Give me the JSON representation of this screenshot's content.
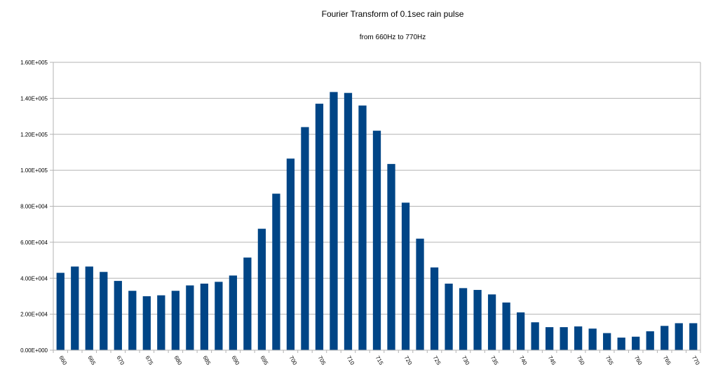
{
  "chart_data": {
    "type": "bar",
    "title": "Fourier Transform of 0.1sec rain pulse",
    "subtitle": "from 660Hz to 770Hz",
    "xlabel": "",
    "ylabel": "",
    "ylim": [
      0,
      160000
    ],
    "yticks": [
      0,
      20000,
      40000,
      60000,
      80000,
      100000,
      120000,
      140000,
      160000
    ],
    "ytick_labels": [
      "0.00E+000",
      "2.00E+004",
      "4.00E+004",
      "6.00E+004",
      "8.00E+004",
      "1.00E+005",
      "1.20E+005",
      "1.40E+005",
      "1.60E+005"
    ],
    "grid": true,
    "legend": "none",
    "bar_color": "#004586",
    "categories": [
      660,
      662.5,
      665,
      667.5,
      670,
      672.5,
      675,
      677.5,
      680,
      682.5,
      685,
      687.5,
      690,
      692.5,
      695,
      697.5,
      700,
      702.5,
      705,
      707.5,
      710,
      712.5,
      715,
      717.5,
      720,
      722.5,
      725,
      727.5,
      730,
      732.5,
      735,
      737.5,
      740,
      742.5,
      745,
      747.5,
      750,
      752.5,
      755,
      757.5,
      760,
      762.5,
      765,
      767.5,
      770
    ],
    "xtick_labels": [
      "660",
      "665",
      "670",
      "675",
      "680",
      "685",
      "690",
      "695",
      "700",
      "705",
      "710",
      "715",
      "720",
      "725",
      "730",
      "735",
      "740",
      "745",
      "750",
      "755",
      "760",
      "765",
      "770"
    ],
    "values": [
      43000,
      46500,
      46500,
      43500,
      38500,
      33000,
      30000,
      30500,
      33000,
      36000,
      37000,
      38000,
      41500,
      51500,
      67500,
      87000,
      106500,
      124000,
      137000,
      143500,
      143000,
      136000,
      122000,
      103500,
      82000,
      62000,
      46000,
      37000,
      34500,
      33500,
      31000,
      26500,
      21000,
      15500,
      12800,
      12800,
      13200,
      12000,
      9500,
      7000,
      7500,
      10500,
      13500,
      15000,
      15000
    ]
  }
}
